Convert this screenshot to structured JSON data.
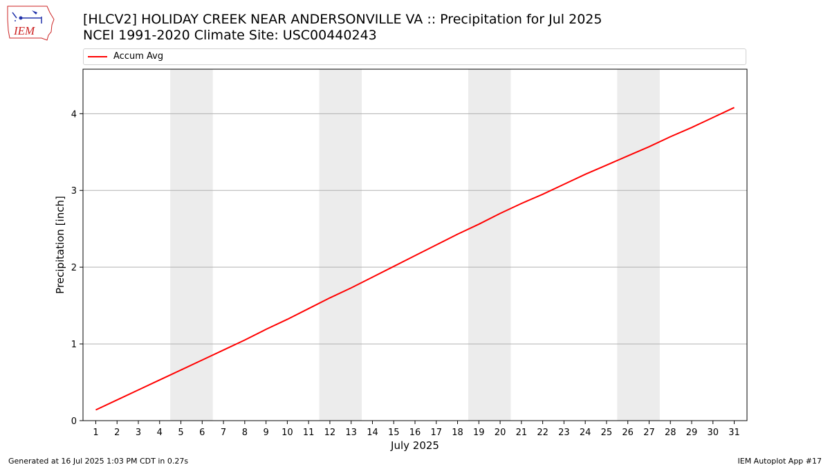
{
  "header": {
    "title_line1": "[HLCV2] HOLIDAY CREEK NEAR ANDERSONVILLE  VA :: Precipitation for Jul 2025",
    "title_line2": "NCEI 1991-2020 Climate Site: USC00440243"
  },
  "logo": {
    "text": "IEM"
  },
  "footer": {
    "left": "Generated at 16 Jul 2025 1:03 PM CDT in 0.27s",
    "right": "IEM Autoplot App #17"
  },
  "colors": {
    "line": "#ff0000",
    "weekend_band": "#ececec",
    "grid": "#b0b0b0",
    "logo_red": "#cc2222",
    "logo_blue": "#2233aa"
  },
  "chart_data": {
    "type": "line",
    "title": "[HLCV2] HOLIDAY CREEK NEAR ANDERSONVILLE  VA :: Precipitation for Jul 2025",
    "subtitle": "NCEI 1991-2020 Climate Site: USC00440243",
    "xlabel": "July 2025",
    "ylabel": "Precipitation [inch]",
    "x": [
      1,
      2,
      3,
      4,
      5,
      6,
      7,
      8,
      9,
      10,
      11,
      12,
      13,
      14,
      15,
      16,
      17,
      18,
      19,
      20,
      21,
      22,
      23,
      24,
      25,
      26,
      27,
      28,
      29,
      30,
      31
    ],
    "xticks": [
      "1",
      "2",
      "3",
      "4",
      "5",
      "6",
      "7",
      "8",
      "9",
      "10",
      "11",
      "12",
      "13",
      "14",
      "15",
      "16",
      "17",
      "18",
      "19",
      "20",
      "21",
      "22",
      "23",
      "24",
      "25",
      "26",
      "27",
      "28",
      "29",
      "30",
      "31"
    ],
    "xlim": [
      0.4,
      31.6
    ],
    "ylim": [
      0,
      4.58
    ],
    "yticks": [
      "0",
      "1",
      "2",
      "3",
      "4"
    ],
    "grid": "y-major",
    "legend_position": "top",
    "weekend_bands": [
      [
        4.5,
        6.5
      ],
      [
        11.5,
        13.5
      ],
      [
        18.5,
        20.5
      ],
      [
        25.5,
        27.5
      ]
    ],
    "series": [
      {
        "name": "Accum Avg",
        "values": [
          0.14,
          0.27,
          0.4,
          0.53,
          0.66,
          0.79,
          0.92,
          1.05,
          1.19,
          1.32,
          1.46,
          1.6,
          1.73,
          1.87,
          2.01,
          2.15,
          2.29,
          2.43,
          2.56,
          2.7,
          2.83,
          2.95,
          3.08,
          3.21,
          3.33,
          3.45,
          3.57,
          3.7,
          3.82,
          3.95,
          4.08
        ]
      }
    ]
  }
}
